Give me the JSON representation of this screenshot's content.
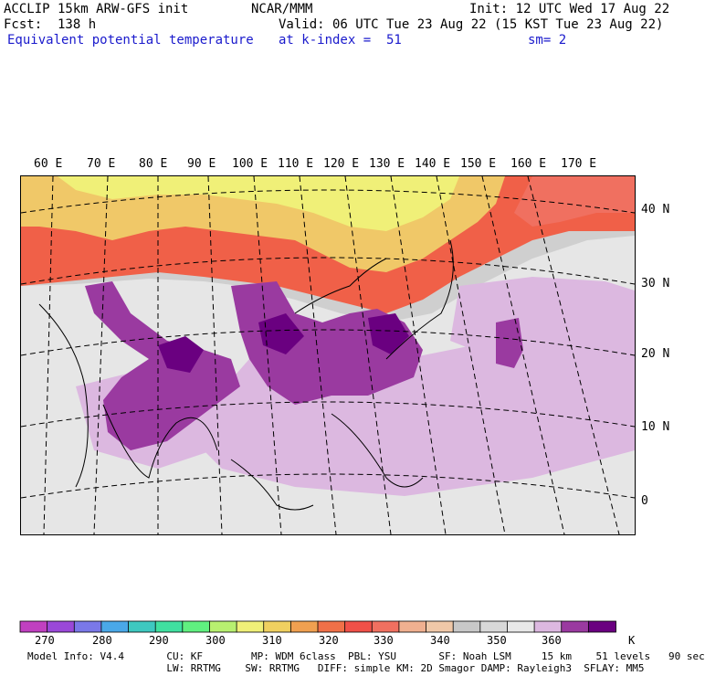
{
  "header": {
    "line1_left": "ACCLIP 15km ARW-GFS init",
    "line1_center": "NCAR/MMM",
    "line1_right": "Init: 12 UTC Wed 17 Aug 22",
    "line2_left": "Fcst:  138 h",
    "line2_right": "Valid: 06 UTC Tue 23 Aug 22 (15 KST Tue 23 Aug 22)",
    "line3_left": "Equivalent potential temperature",
    "line3_center": "at k-index =  51",
    "line3_right": "sm= 2"
  },
  "map": {
    "longitude_labels": [
      "60 E",
      "70 E",
      "80 E",
      "90 E",
      "100 E",
      "110 E",
      "120 E",
      "130 E",
      "140 E",
      "150 E",
      "160 E",
      "170 E"
    ],
    "latitude_labels": [
      "40 N",
      "30 N",
      "20 N",
      "10 N",
      "0"
    ]
  },
  "colorbar": {
    "unit": "K",
    "tick_labels": [
      "270",
      "280",
      "290",
      "300",
      "310",
      "320",
      "330",
      "340",
      "350",
      "360"
    ],
    "colors": [
      "#c040c0",
      "#9a48d8",
      "#7a78e8",
      "#4aa8e8",
      "#3ec8c0",
      "#40e0a0",
      "#60f080",
      "#b8f070",
      "#f0f078",
      "#f0d060",
      "#f0a050",
      "#f07048",
      "#f05048",
      "#f07060",
      "#f0b090",
      "#f0c8a8",
      "#c8c8c8",
      "#d8d8d8",
      "#e8e8e8",
      "#dcb8e0",
      "#9a3aa0",
      "#6a0080"
    ]
  },
  "footer": {
    "line1": "Model Info: V4.4       CU: KF        MP: WDM 6class  PBL: YSU       SF: Noah LSM     15 km    51 levels   90 sec",
    "line2": "                       LW: RRTMG    SW: RRTMG   DIFF: simple KM: 2D Smagor DAMP: Rayleigh3  SFLAY: MM5"
  }
}
